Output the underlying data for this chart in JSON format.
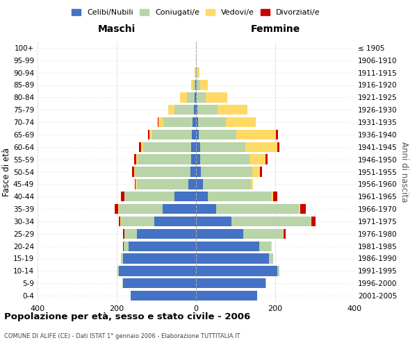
{
  "age_groups": [
    "0-4",
    "5-9",
    "10-14",
    "15-19",
    "20-24",
    "25-29",
    "30-34",
    "35-39",
    "40-44",
    "45-49",
    "50-54",
    "55-59",
    "60-64",
    "65-69",
    "70-74",
    "75-79",
    "80-84",
    "85-89",
    "90-94",
    "95-99",
    "100+"
  ],
  "birth_years": [
    "2001-2005",
    "1996-2000",
    "1991-1995",
    "1986-1990",
    "1981-1985",
    "1976-1980",
    "1971-1975",
    "1966-1970",
    "1961-1965",
    "1956-1960",
    "1951-1955",
    "1946-1950",
    "1941-1945",
    "1936-1940",
    "1931-1935",
    "1926-1930",
    "1921-1925",
    "1916-1920",
    "1911-1915",
    "1906-1910",
    "≤ 1905"
  ],
  "maschi": {
    "celibi": [
      165,
      185,
      195,
      185,
      170,
      150,
      105,
      85,
      55,
      20,
      14,
      12,
      13,
      10,
      8,
      5,
      3,
      2,
      0,
      0,
      0
    ],
    "coniugati": [
      0,
      1,
      3,
      5,
      12,
      30,
      85,
      110,
      125,
      130,
      140,
      135,
      120,
      100,
      75,
      50,
      20,
      5,
      2,
      0,
      0
    ],
    "vedovi": [
      0,
      0,
      0,
      0,
      0,
      0,
      1,
      2,
      1,
      2,
      2,
      4,
      5,
      8,
      12,
      15,
      18,
      5,
      1,
      0,
      0
    ],
    "divorziati": [
      0,
      0,
      0,
      0,
      2,
      4,
      3,
      8,
      8,
      2,
      6,
      6,
      5,
      3,
      2,
      0,
      0,
      0,
      0,
      0,
      0
    ]
  },
  "femmine": {
    "nubili": [
      155,
      175,
      205,
      185,
      160,
      120,
      90,
      50,
      30,
      18,
      12,
      10,
      10,
      7,
      5,
      4,
      2,
      2,
      0,
      0,
      0
    ],
    "coniugate": [
      0,
      2,
      5,
      10,
      30,
      100,
      200,
      210,
      160,
      120,
      130,
      125,
      115,
      95,
      70,
      50,
      22,
      8,
      4,
      1,
      0
    ],
    "vedove": [
      0,
      0,
      0,
      0,
      1,
      1,
      2,
      3,
      5,
      5,
      20,
      40,
      80,
      100,
      75,
      75,
      55,
      20,
      5,
      1,
      0
    ],
    "divorziate": [
      0,
      0,
      0,
      0,
      0,
      5,
      10,
      15,
      10,
      0,
      5,
      5,
      5,
      5,
      0,
      0,
      0,
      0,
      0,
      0,
      0
    ]
  },
  "colors": {
    "celibi": "#4472C4",
    "coniugati": "#B8D4A8",
    "vedovi": "#FFD966",
    "divorziati": "#CC0000"
  },
  "title": "Popolazione per età, sesso e stato civile - 2006",
  "subtitle": "COMUNE DI ALIFE (CE) - Dati ISTAT 1° gennaio 2006 - Elaborazione TUTTITALIA.IT",
  "xlabel_left": "Maschi",
  "xlabel_right": "Femmine",
  "ylabel_left": "Fasce di età",
  "ylabel_right": "Anni di nascita",
  "xlim": 400,
  "background_color": "#ffffff",
  "grid_color": "#cccccc"
}
